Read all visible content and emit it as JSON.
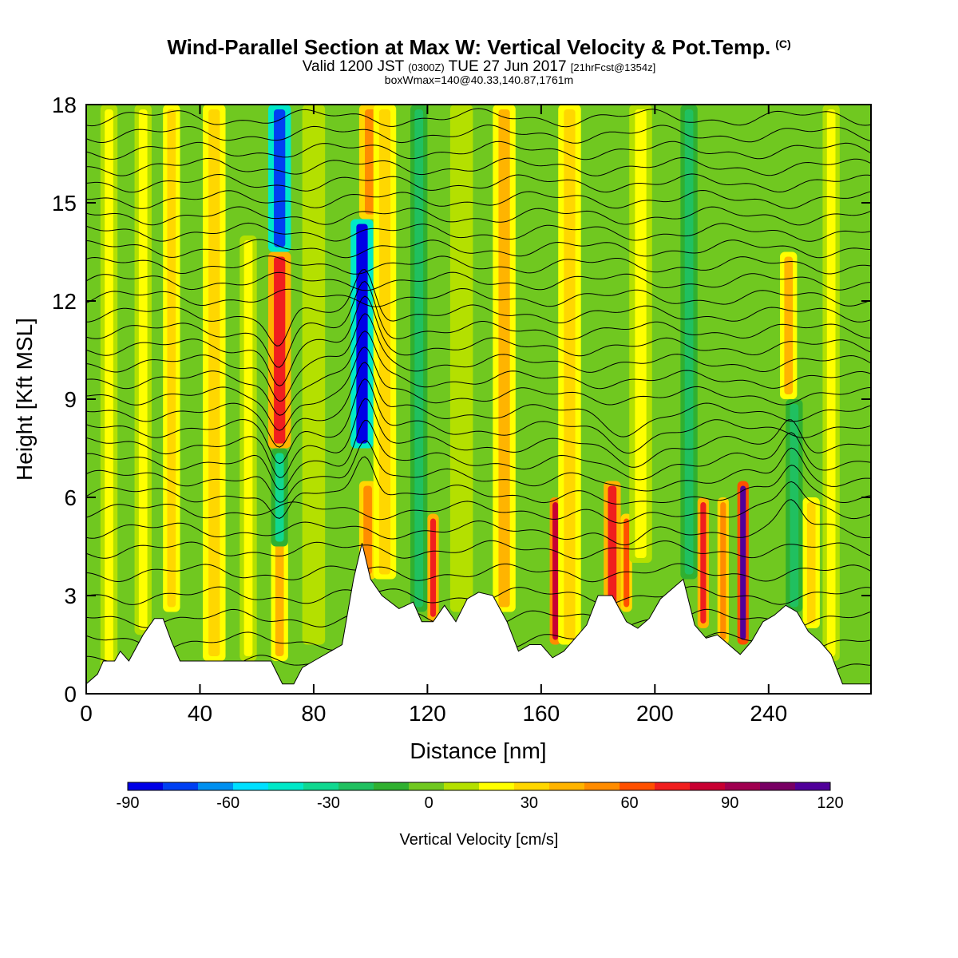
{
  "title": {
    "main": "Wind-Parallel Section at Max W: Vertical Velocity & Pot.Temp.",
    "copyright": "(C)",
    "valid_prefix": "Valid 1200 JST",
    "valid_utc": "(0300Z)",
    "valid_date": "TUE 27 Jun 2017",
    "forecast": "[21hrFcst@1354z]",
    "box_info": "boxWmax=140@40.33,140.87,1761m"
  },
  "chart_data": {
    "type": "heatmap",
    "xlabel": "Distance [nm]",
    "ylabel": "Height [Kft MSL]",
    "xlim": [
      0,
      276
    ],
    "ylim": [
      0,
      18
    ],
    "x_ticks": [
      0,
      40,
      80,
      120,
      160,
      200,
      240
    ],
    "y_ticks": [
      0,
      3,
      6,
      9,
      12,
      15,
      18
    ],
    "colorbar": {
      "label": "Vertical Velocity [cm/s]",
      "range": [
        -90,
        120
      ],
      "ticks": [
        -90,
        -60,
        -30,
        0,
        30,
        60,
        90,
        120
      ],
      "colors": [
        "#0000e6",
        "#0040f2",
        "#0090f0",
        "#00e0ff",
        "#00e8c8",
        "#10d890",
        "#20c060",
        "#30b030",
        "#70c820",
        "#b4e000",
        "#ffff00",
        "#ffd700",
        "#ffb400",
        "#ff8c00",
        "#ff5000",
        "#f01e1e",
        "#c80032",
        "#a00050",
        "#780064",
        "#50009a"
      ]
    },
    "terrain_profile": [
      [
        0,
        0.3
      ],
      [
        4,
        0.6
      ],
      [
        6,
        1.0
      ],
      [
        10,
        1.0
      ],
      [
        12,
        1.3
      ],
      [
        15,
        1.0
      ],
      [
        20,
        1.8
      ],
      [
        24,
        2.3
      ],
      [
        27,
        2.3
      ],
      [
        30,
        1.6
      ],
      [
        33,
        1.0
      ],
      [
        60,
        1.0
      ],
      [
        65,
        1.0
      ],
      [
        69,
        0.3
      ],
      [
        73,
        0.3
      ],
      [
        76,
        0.8
      ],
      [
        80,
        1.0
      ],
      [
        90,
        1.5
      ],
      [
        94,
        3.5
      ],
      [
        97,
        4.6
      ],
      [
        100,
        3.5
      ],
      [
        104,
        3.0
      ],
      [
        110,
        2.6
      ],
      [
        115,
        2.8
      ],
      [
        118,
        2.2
      ],
      [
        122,
        2.2
      ],
      [
        126,
        2.7
      ],
      [
        130,
        2.2
      ],
      [
        134,
        2.9
      ],
      [
        138,
        3.1
      ],
      [
        143,
        3.0
      ],
      [
        148,
        2.2
      ],
      [
        152,
        1.3
      ],
      [
        156,
        1.5
      ],
      [
        160,
        1.5
      ],
      [
        164,
        1.1
      ],
      [
        168,
        1.3
      ],
      [
        172,
        1.7
      ],
      [
        176,
        2.1
      ],
      [
        180,
        3.0
      ],
      [
        185,
        3.0
      ],
      [
        190,
        2.2
      ],
      [
        194,
        2.0
      ],
      [
        198,
        2.3
      ],
      [
        202,
        2.9
      ],
      [
        206,
        3.2
      ],
      [
        210,
        3.5
      ],
      [
        214,
        2.1
      ],
      [
        218,
        1.7
      ],
      [
        222,
        1.8
      ],
      [
        226,
        1.5
      ],
      [
        230,
        1.2
      ],
      [
        234,
        1.6
      ],
      [
        238,
        2.2
      ],
      [
        242,
        2.4
      ],
      [
        246,
        2.7
      ],
      [
        250,
        2.5
      ],
      [
        254,
        1.9
      ],
      [
        258,
        1.6
      ],
      [
        262,
        1.2
      ],
      [
        266,
        0.3
      ],
      [
        270,
        0.3
      ],
      [
        276,
        0.3
      ]
    ],
    "vertical_velocity_features": [
      {
        "x": 8,
        "wmin": 0.3,
        "wmax": 18,
        "w": 15,
        "width": 3
      },
      {
        "x": 20,
        "wmin": 1.8,
        "wmax": 18,
        "w": 20,
        "width": 3
      },
      {
        "x": 30,
        "wmin": 2.5,
        "wmax": 18,
        "w": 28,
        "width": 3
      },
      {
        "x": 45,
        "wmin": 1.0,
        "wmax": 18,
        "w": 30,
        "width": 4
      },
      {
        "x": 57,
        "wmin": 1.0,
        "wmax": 14,
        "w": 20,
        "width": 3
      },
      {
        "x": 68,
        "wmin": 7.5,
        "wmax": 13.5,
        "w": 72,
        "width": 4
      },
      {
        "x": 68,
        "wmin": 1.0,
        "wmax": 5.5,
        "w": 40,
        "width": 3
      },
      {
        "x": 68,
        "wmin": 4.5,
        "wmax": 7.5,
        "w": -30,
        "width": 3
      },
      {
        "x": 68,
        "wmin": 13.5,
        "wmax": 18,
        "w": -70,
        "width": 4
      },
      {
        "x": 80,
        "wmin": 1.5,
        "wmax": 18,
        "w": 12,
        "width": 4
      },
      {
        "x": 97,
        "wmin": 7.5,
        "wmax": 14.5,
        "w": -85,
        "width": 4
      },
      {
        "x": 99,
        "wmin": 3.5,
        "wmax": 6.5,
        "w": 55,
        "width": 3
      },
      {
        "x": 100,
        "wmin": 14.5,
        "wmax": 18,
        "w": 55,
        "width": 4
      },
      {
        "x": 105,
        "wmin": 3.5,
        "wmax": 18,
        "w": 30,
        "width": 4
      },
      {
        "x": 117,
        "wmin": 2.5,
        "wmax": 18,
        "w": -25,
        "width": 3
      },
      {
        "x": 122,
        "wmin": 2.2,
        "wmax": 5.5,
        "w": 75,
        "width": 2
      },
      {
        "x": 132,
        "wmin": 2.5,
        "wmax": 18,
        "w": 12,
        "width": 4
      },
      {
        "x": 147,
        "wmin": 2.5,
        "wmax": 18,
        "w": 40,
        "width": 4
      },
      {
        "x": 165,
        "wmin": 1.5,
        "wmax": 6.0,
        "w": 85,
        "width": 2
      },
      {
        "x": 170,
        "wmin": 1.5,
        "wmax": 18,
        "w": 30,
        "width": 4
      },
      {
        "x": 185,
        "wmin": 2.5,
        "wmax": 6.5,
        "w": 75,
        "width": 3
      },
      {
        "x": 190,
        "wmin": 2.5,
        "wmax": 5.5,
        "w": 60,
        "width": 2
      },
      {
        "x": 195,
        "wmin": 4.0,
        "wmax": 18,
        "w": 25,
        "width": 4
      },
      {
        "x": 212,
        "wmin": 3.5,
        "wmax": 18,
        "w": -25,
        "width": 3
      },
      {
        "x": 217,
        "wmin": 2.0,
        "wmax": 6.0,
        "w": 72,
        "width": 2
      },
      {
        "x": 224,
        "wmin": 1.5,
        "wmax": 6.0,
        "w": 55,
        "width": 2
      },
      {
        "x": 231,
        "wmin": 1.5,
        "wmax": 6.5,
        "w": 115,
        "width": 2
      },
      {
        "x": 247,
        "wmin": 9.0,
        "wmax": 13.5,
        "w": 45,
        "width": 3
      },
      {
        "x": 249,
        "wmin": 2.5,
        "wmax": 9.0,
        "w": -25,
        "width": 3
      },
      {
        "x": 255,
        "wmin": 2.0,
        "wmax": 6.0,
        "w": 35,
        "width": 3
      },
      {
        "x": 262,
        "wmin": 1.0,
        "wmax": 18,
        "w": 15,
        "width": 3
      }
    ],
    "theta_contours": {
      "levels_base_kft": [
        0.9,
        1.6,
        2.3,
        3.0,
        3.7,
        4.4,
        5.0,
        5.6,
        6.1,
        6.6,
        7.1,
        7.6,
        8.1,
        8.6,
        9.1,
        9.6,
        10.1,
        10.6,
        11.1,
        11.6,
        12.1,
        12.6,
        13.1,
        13.6,
        14.1,
        14.6,
        15.1,
        15.6,
        16.1,
        16.6,
        17.1,
        17.6
      ],
      "perturbations": [
        {
          "x": 68,
          "amp": -1.0,
          "width": 5,
          "zmin": 6,
          "zmax": 12
        },
        {
          "x": 98,
          "amp": 1.4,
          "width": 5,
          "zmin": 6,
          "zmax": 12
        },
        {
          "x": 190,
          "amp": -0.5,
          "width": 10,
          "zmin": 5,
          "zmax": 9
        },
        {
          "x": 248,
          "amp": 0.8,
          "width": 5,
          "zmin": 5,
          "zmax": 8
        }
      ]
    }
  }
}
